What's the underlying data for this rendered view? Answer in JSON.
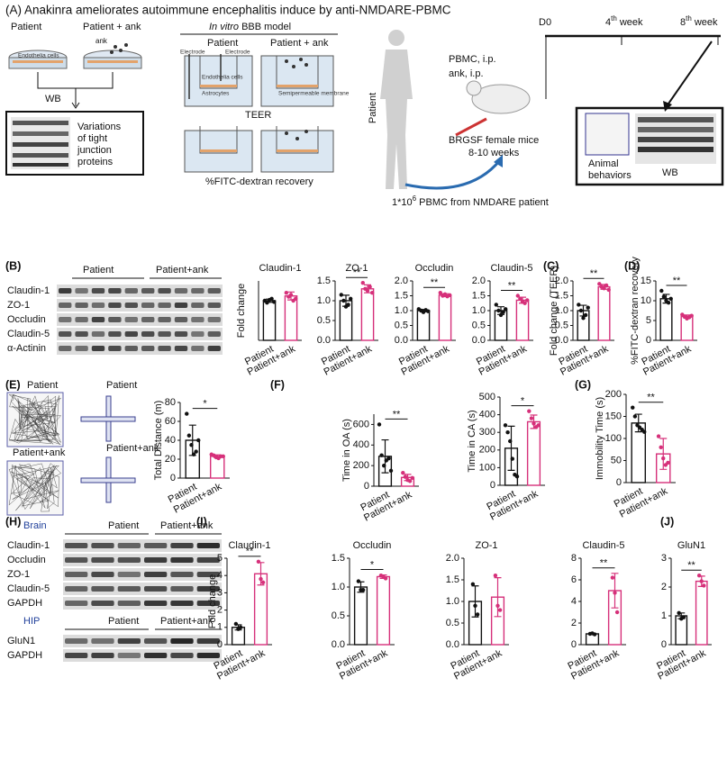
{
  "figure": {
    "title": "(A) Anakinra ameliorates autoimmune encephalitis induce by anti-NMDARE-PBMC",
    "panel_labels": [
      "(B)",
      "(C)",
      "(D)",
      "(E)",
      "(F)",
      "(G)",
      "(H)",
      "(I)",
      "(J)"
    ],
    "schematic": {
      "dish_groups": [
        "Patient",
        "Patient + ank"
      ],
      "ank": "ank",
      "dish_cells": "Endothelia cells",
      "wb": "WB",
      "variations": [
        "Variations",
        "of tight",
        "junction",
        "proteins"
      ],
      "bbb_title": [
        "In vitro",
        " BBB model"
      ],
      "bbb_groups": [
        "Patient",
        "Patient + ank"
      ],
      "electrodes": [
        "Electrode",
        "Electrode"
      ],
      "bbb_cells": "Endothelia cells",
      "astrocytes": "Astrocytes",
      "membrane": "Semipermeable membrane",
      "teer": "TEER",
      "fitc": "%FITC-dextran recovery",
      "human": "Patient",
      "injections": [
        "PBMC, i.p.",
        "ank, i.p."
      ],
      "mice": [
        "BRGSF female mice",
        "8-10 weeks"
      ],
      "pbmc": [
        "1*10",
        "6",
        " PBMC from NMDARE patient"
      ],
      "timeline": {
        "d0": "D0",
        "w4": [
          "4",
          "th",
          " week"
        ],
        "w8": [
          "8",
          "th",
          " week"
        ]
      },
      "behaviors": [
        "Animal",
        "behaviors"
      ],
      "wb2": "WB"
    },
    "blot_b": {
      "groups": [
        "Patient",
        "Patient+ank"
      ],
      "rows": [
        "Claudin-1",
        "ZO-1",
        "Occludin",
        "Claudin-5",
        "α-Actinin"
      ]
    },
    "maze_e": [
      "Patient",
      "Patient+ank"
    ],
    "maze_f": [
      "Patient",
      "Patient+ank"
    ],
    "blot_h": {
      "brain": "Brain",
      "groups": [
        "Patient",
        "Patient+ank"
      ],
      "rows": [
        "Claudin-1",
        "Occludin",
        "ZO-1",
        "Claudin-5",
        "GAPDH"
      ],
      "hip": "HIP",
      "hip_groups": [
        "Patient",
        "Patient+ank"
      ],
      "hip_rows": [
        "GluN1",
        "GAPDH"
      ]
    }
  },
  "chart_data": [
    {
      "type": "bar",
      "title": "Claudin-1",
      "y_label": "Fold change",
      "categories": [
        "Patient",
        "Patient+ank"
      ],
      "colors": [
        "#111111",
        "#d6307a"
      ],
      "values": [
        1.0,
        1.12
      ],
      "errors": [
        0.04,
        0.1
      ],
      "points": [
        [
          1.0,
          0.95,
          1.02,
          1.05,
          0.97
        ],
        [
          1.2,
          1.1,
          1.15,
          1.0,
          1.05
        ]
      ],
      "ylim": [
        0,
        1.5
      ],
      "yticks": []
    },
    {
      "type": "bar",
      "title": "ZO-1",
      "categories": [
        "Patient",
        "Patient+ank"
      ],
      "colors": [
        "#111111",
        "#d6307a"
      ],
      "values": [
        1.0,
        1.3
      ],
      "errors": [
        0.14,
        0.1
      ],
      "points": [
        [
          1.15,
          1.0,
          0.85,
          0.9,
          1.05
        ],
        [
          1.45,
          1.3,
          1.25,
          1.35,
          1.2
        ]
      ],
      "ylim": [
        0,
        1.5
      ],
      "yticks": [
        {
          "value": 0,
          "label": "0.0"
        },
        0.5,
        {
          "value": 1,
          "label": "1.0"
        },
        1.5
      ],
      "significance": "**"
    },
    {
      "type": "bar",
      "title": "Occludin",
      "categories": [
        "Patient",
        "Patient+ank"
      ],
      "colors": [
        "#111111",
        "#d6307a"
      ],
      "values": [
        1.0,
        1.52
      ],
      "errors": [
        0.04,
        0.05
      ],
      "points": [
        [
          1.05,
          1.0,
          0.95,
          1.02,
          0.98
        ],
        [
          1.6,
          1.5,
          1.55,
          1.48,
          1.52
        ]
      ],
      "ylim": [
        0,
        2
      ],
      "yticks": [
        {
          "value": 0,
          "label": "0.0"
        },
        0.5,
        {
          "value": 1,
          "label": "1.0"
        },
        1.5,
        {
          "value": 2,
          "label": "2.0"
        }
      ],
      "significance": "**"
    },
    {
      "type": "bar",
      "title": "Claudin-5",
      "categories": [
        "Patient",
        "Patient+ank"
      ],
      "colors": [
        "#111111",
        "#d6307a"
      ],
      "values": [
        1.0,
        1.35
      ],
      "errors": [
        0.13,
        0.1
      ],
      "points": [
        [
          1.2,
          1.0,
          0.85,
          0.95,
          1.05
        ],
        [
          1.5,
          1.4,
          1.3,
          1.25,
          1.35
        ]
      ],
      "ylim": [
        0,
        2
      ],
      "yticks": [
        {
          "value": 0,
          "label": "0.0"
        },
        0.5,
        {
          "value": 1,
          "label": "1.0"
        },
        1.5,
        {
          "value": 2,
          "label": "2.0"
        }
      ],
      "significance": "**"
    },
    {
      "type": "bar",
      "y_label": "Fold change (TEER)",
      "categories": [
        "Patient",
        "Patient+ank"
      ],
      "colors": [
        "#111111",
        "#d6307a"
      ],
      "values": [
        1.0,
        1.8
      ],
      "errors": [
        0.18,
        0.08
      ],
      "points": [
        [
          1.2,
          1.0,
          0.75,
          0.85,
          1.1
        ],
        [
          1.9,
          1.8,
          1.75,
          1.85,
          1.7
        ]
      ],
      "ylim": [
        0,
        2
      ],
      "yticks": [
        {
          "value": 0,
          "label": "0.0"
        },
        0.5,
        {
          "value": 1,
          "label": "1.0"
        },
        1.5,
        {
          "value": 2,
          "label": "2.0"
        }
      ],
      "significance": "**"
    },
    {
      "type": "bar",
      "y_label": "%FITC-dextran recovery",
      "categories": [
        "Patient",
        "Patient+ank"
      ],
      "colors": [
        "#111111",
        "#d6307a"
      ],
      "values": [
        10.5,
        6.0
      ],
      "errors": [
        1.1,
        0.4
      ],
      "points": [
        [
          12.5,
          11,
          10,
          9.5,
          10.5
        ],
        [
          6.5,
          6,
          5.5,
          5.8,
          6.2
        ]
      ],
      "ylim": [
        0,
        15
      ],
      "yticks": [
        0,
        5,
        10,
        15
      ],
      "significance": "**"
    },
    {
      "type": "bar",
      "y_label": "Total Distance (m)",
      "categories": [
        "Patient",
        "Patient+ank"
      ],
      "colors": [
        "#111111",
        "#d6307a"
      ],
      "values": [
        40,
        23
      ],
      "errors": [
        16,
        1.5
      ],
      "points": [
        [
          68,
          45,
          35,
          25,
          28,
          40
        ],
        [
          25,
          24,
          22,
          21,
          23,
          23
        ]
      ],
      "ylim": [
        0,
        80
      ],
      "yticks": [
        0,
        20,
        40,
        60,
        80
      ],
      "significance": "*"
    },
    {
      "type": "bar",
      "y_label": "Time in OA (s)",
      "categories": [
        "Patient",
        "Patient+ank"
      ],
      "colors": [
        "#111111",
        "#d6307a"
      ],
      "values": [
        290,
        85
      ],
      "errors": [
        160,
        30
      ],
      "points": [
        [
          600,
          300,
          200,
          250,
          270,
          150
        ],
        [
          130,
          90,
          60,
          50,
          80
        ]
      ],
      "ylim": [
        0,
        700
      ],
      "yticks": [
        0,
        200,
        400,
        600
      ],
      "significance": "**"
    },
    {
      "type": "bar",
      "y_label": "Time in CA (s)",
      "categories": [
        "Patient",
        "Patient+ank"
      ],
      "colors": [
        "#111111",
        "#d6307a"
      ],
      "values": [
        210,
        360
      ],
      "errors": [
        125,
        38
      ],
      "points": [
        [
          340,
          300,
          250,
          150,
          60,
          50
        ],
        [
          420,
          380,
          350,
          330,
          340
        ]
      ],
      "ylim": [
        0,
        500
      ],
      "yticks": [
        0,
        100,
        200,
        300,
        400,
        500
      ],
      "significance": "*"
    },
    {
      "type": "bar",
      "y_label": "Immobility Time (s)",
      "categories": [
        "Patient",
        "Patient+ank"
      ],
      "colors": [
        "#111111",
        "#d6307a"
      ],
      "values": [
        135,
        65
      ],
      "errors": [
        20,
        35
      ],
      "points": [
        [
          170,
          150,
          130,
          125,
          120,
          115
        ],
        [
          105,
          80,
          55,
          40,
          45
        ]
      ],
      "ylim": [
        0,
        200
      ],
      "yticks": [
        0,
        50,
        100,
        150,
        200
      ],
      "significance": "**"
    },
    {
      "type": "bar",
      "title": "Claudin-1",
      "y_label": "Fold change",
      "categories": [
        "Patient",
        "Patient+ank"
      ],
      "colors": [
        "#111111",
        "#d6307a"
      ],
      "values": [
        1.0,
        4.1
      ],
      "errors": [
        0.15,
        0.65
      ],
      "points": [
        [
          1.2,
          0.9,
          1.0
        ],
        [
          4.8,
          3.8,
          3.6
        ]
      ],
      "ylim": [
        0,
        5
      ],
      "yticks": [
        0,
        1,
        2,
        3,
        4,
        5
      ],
      "significance": "**"
    },
    {
      "type": "bar",
      "title": "Occludin",
      "categories": [
        "Patient",
        "Patient+ank"
      ],
      "colors": [
        "#111111",
        "#d6307a"
      ],
      "values": [
        1.0,
        1.18
      ],
      "errors": [
        0.09,
        0.03
      ],
      "points": [
        [
          1.1,
          0.95,
          0.95
        ],
        [
          1.2,
          1.18,
          1.15
        ]
      ],
      "ylim": [
        0,
        1.5
      ],
      "yticks": [
        {
          "value": 0,
          "label": "0.0"
        },
        0.5,
        {
          "value": 1,
          "label": "1.0"
        },
        1.5
      ],
      "significance": "*"
    },
    {
      "type": "bar",
      "title": "ZO-1",
      "categories": [
        "Patient",
        "Patient+ank"
      ],
      "colors": [
        "#111111",
        "#d6307a"
      ],
      "values": [
        1.0,
        1.1
      ],
      "errors": [
        0.36,
        0.45
      ],
      "points": [
        [
          1.4,
          0.9,
          0.7
        ],
        [
          1.6,
          0.9,
          0.8
        ]
      ],
      "ylim": [
        0,
        2
      ],
      "yticks": [
        {
          "value": 0,
          "label": "0.0"
        },
        0.5,
        {
          "value": 1,
          "label": "1.0"
        },
        1.5,
        {
          "value": 2,
          "label": "2.0"
        }
      ]
    },
    {
      "type": "bar",
      "title": "Claudin-5",
      "categories": [
        "Patient",
        "Patient+ank"
      ],
      "colors": [
        "#111111",
        "#d6307a"
      ],
      "values": [
        1.0,
        5.0
      ],
      "errors": [
        0.05,
        1.6
      ],
      "points": [
        [
          1.0,
          1.05,
          0.95
        ],
        [
          6.2,
          4.8,
          3.0
        ]
      ],
      "ylim": [
        0,
        8
      ],
      "yticks": [
        0,
        2,
        4,
        6,
        8
      ],
      "significance": "**"
    },
    {
      "type": "bar",
      "title": "GluN1",
      "categories": [
        "Patient",
        "Patient+ank"
      ],
      "colors": [
        "#111111",
        "#d6307a"
      ],
      "values": [
        1.0,
        2.2
      ],
      "errors": [
        0.1,
        0.18
      ],
      "points": [
        [
          1.1,
          0.9,
          0.95
        ],
        [
          2.4,
          2.2,
          2.05
        ]
      ],
      "ylim": [
        0,
        3
      ],
      "yticks": [
        0,
        1,
        2,
        3
      ],
      "significance": "**"
    }
  ]
}
